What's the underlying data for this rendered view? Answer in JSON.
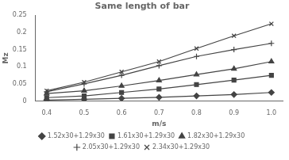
{
  "chart_data": {
    "type": "line",
    "title": "Same length of bar",
    "xlabel": "m/s",
    "ylabel": "Mz",
    "x": [
      0.4,
      0.5,
      0.6,
      0.7,
      0.8,
      0.9,
      1.0
    ],
    "series": [
      {
        "name": "1.52x30+1.29x30",
        "color": "#444444",
        "marker": "diamond",
        "values": [
          0.003,
          0.005,
          0.008,
          0.011,
          0.015,
          0.019,
          0.025
        ]
      },
      {
        "name": "1.61x30+1.29x30",
        "color": "#444444",
        "marker": "square",
        "values": [
          0.01,
          0.015,
          0.025,
          0.035,
          0.048,
          0.061,
          0.075
        ]
      },
      {
        "name": "1.82x30+1.29x30",
        "color": "#444444",
        "marker": "triangle",
        "values": [
          0.022,
          0.03,
          0.044,
          0.06,
          0.077,
          0.094,
          0.115
        ]
      },
      {
        "name": "2.05x30+1.29x30",
        "color": "#444444",
        "marker": "plus",
        "values": [
          0.027,
          0.05,
          0.075,
          0.103,
          0.13,
          0.15,
          0.168
        ]
      },
      {
        "name": "2.34x30+1.29x30",
        "color": "#444444",
        "marker": "x",
        "values": [
          0.03,
          0.055,
          0.085,
          0.115,
          0.153,
          0.19,
          0.225
        ]
      }
    ],
    "xlim": [
      0.37,
      1.03
    ],
    "ylim": [
      0,
      0.25
    ],
    "xticks": [
      0.4,
      0.5,
      0.6,
      0.7,
      0.8,
      0.9,
      {
        "value": 1.0,
        "label": "1.0"
      }
    ],
    "yticks": [
      0,
      0.05,
      0.1,
      0.15,
      0.2,
      0.25
    ],
    "grid": false,
    "legend": "bottom"
  }
}
